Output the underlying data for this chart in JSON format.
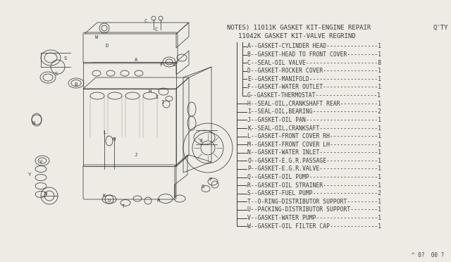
{
  "bg_color": "#eeebe5",
  "title_line1": "NOTES) 11011K GASKET KIT-ENGINE REPAIR",
  "title_qty": "Q'TY",
  "title_line2": "11042K GASKET KIT-VALVE REGRIND",
  "parts": [
    {
      "letter": "A",
      "desc": "GASKET-CYLINDER HEAD",
      "qty": "1",
      "indent": 2
    },
    {
      "letter": "B",
      "desc": "GASKET-HEAD TO FRONT COVER",
      "qty": "1",
      "indent": 2
    },
    {
      "letter": "C",
      "desc": "SEAL-OIL VALVE",
      "qty": "8",
      "indent": 2
    },
    {
      "letter": "D",
      "desc": "GASKET-ROCKER COVER",
      "qty": "1",
      "indent": 2
    },
    {
      "letter": "E",
      "desc": "GASKET-MANIFOLD",
      "qty": "1",
      "indent": 2
    },
    {
      "letter": "F",
      "desc": "GASKET-WATER OUTLET",
      "qty": "1",
      "indent": 2
    },
    {
      "letter": "G",
      "desc": "GASKET-THERMOSTAT",
      "qty": "1",
      "indent": 2
    },
    {
      "letter": "H",
      "desc": "SEAL-OIL,CRANKSHAFT REAR",
      "qty": "1",
      "indent": 1
    },
    {
      "letter": "I",
      "desc": "SEAL-OIL,BEARING",
      "qty": "2",
      "indent": 1
    },
    {
      "letter": "J",
      "desc": "GASKET-OIL PAN",
      "qty": "1",
      "indent": 1
    },
    {
      "letter": "K",
      "desc": "SEAL-OIL,CRANKSAFT",
      "qty": "1",
      "indent": 1
    },
    {
      "letter": "L",
      "desc": "GASKET-FRONT COVER RH",
      "qty": "1",
      "indent": 1
    },
    {
      "letter": "M",
      "desc": "GASKET-FRONT COVER LH",
      "qty": "1",
      "indent": 1
    },
    {
      "letter": "N",
      "desc": "GASKET-WATER INLET",
      "qty": "1",
      "indent": 1
    },
    {
      "letter": "O",
      "desc": "GASKET-E.G.R.PASSAGE",
      "qty": "1",
      "indent": 1
    },
    {
      "letter": "P",
      "desc": "GASKET-E.G.R.VALVE",
      "qty": "1",
      "indent": 1
    },
    {
      "letter": "Q",
      "desc": "GASKET-OIL PUMP",
      "qty": "1",
      "indent": 1
    },
    {
      "letter": "R",
      "desc": "GASKET-OIL STRAINER",
      "qty": "1",
      "indent": 1
    },
    {
      "letter": "S",
      "desc": "GASKET-FUEL PUMP",
      "qty": "2",
      "indent": 1
    },
    {
      "letter": "T",
      "desc": "O-RING-DISTRIBUTOR SUPPORT",
      "qty": "1",
      "indent": 1
    },
    {
      "letter": "U",
      "desc": "PACKING-DISTRIBUTOR SUPPORT",
      "qty": "1",
      "indent": 1
    },
    {
      "letter": "V",
      "desc": "GASKET-WATER PUMP",
      "qty": "1",
      "indent": 1
    },
    {
      "letter": "W",
      "desc": "GASKET-OIL FILTER CAP",
      "qty": "1",
      "indent": 1
    }
  ],
  "footer": "^ 0?  00 ?",
  "text_color": "#3a3a3a",
  "line_color": "#3a3a3a",
  "font_size": 5.8,
  "title_font_size": 6.5,
  "diagram_labels": [
    [
      "C",
      207,
      30
    ],
    [
      "C",
      222,
      42
    ],
    [
      "W",
      137,
      53
    ],
    [
      "D",
      152,
      65
    ],
    [
      "S",
      93,
      83
    ],
    [
      "A",
      193,
      85
    ],
    [
      "F",
      228,
      92
    ],
    [
      "G",
      247,
      92
    ],
    [
      "S",
      80,
      105
    ],
    [
      "B",
      108,
      120
    ],
    [
      "H",
      213,
      130
    ],
    [
      "I",
      222,
      138
    ],
    [
      "I",
      230,
      145
    ],
    [
      "N",
      48,
      175
    ],
    [
      "L",
      148,
      188
    ],
    [
      "M",
      162,
      198
    ],
    [
      "E",
      285,
      200
    ],
    [
      "J",
      193,
      220
    ],
    [
      "V",
      58,
      230
    ],
    [
      "Y",
      42,
      248
    ],
    [
      "D",
      65,
      275
    ],
    [
      "K",
      148,
      278
    ],
    [
      "U",
      155,
      285
    ],
    [
      "T",
      175,
      293
    ],
    [
      "R",
      225,
      285
    ],
    [
      "P",
      298,
      255
    ],
    [
      "O",
      288,
      265
    ]
  ]
}
